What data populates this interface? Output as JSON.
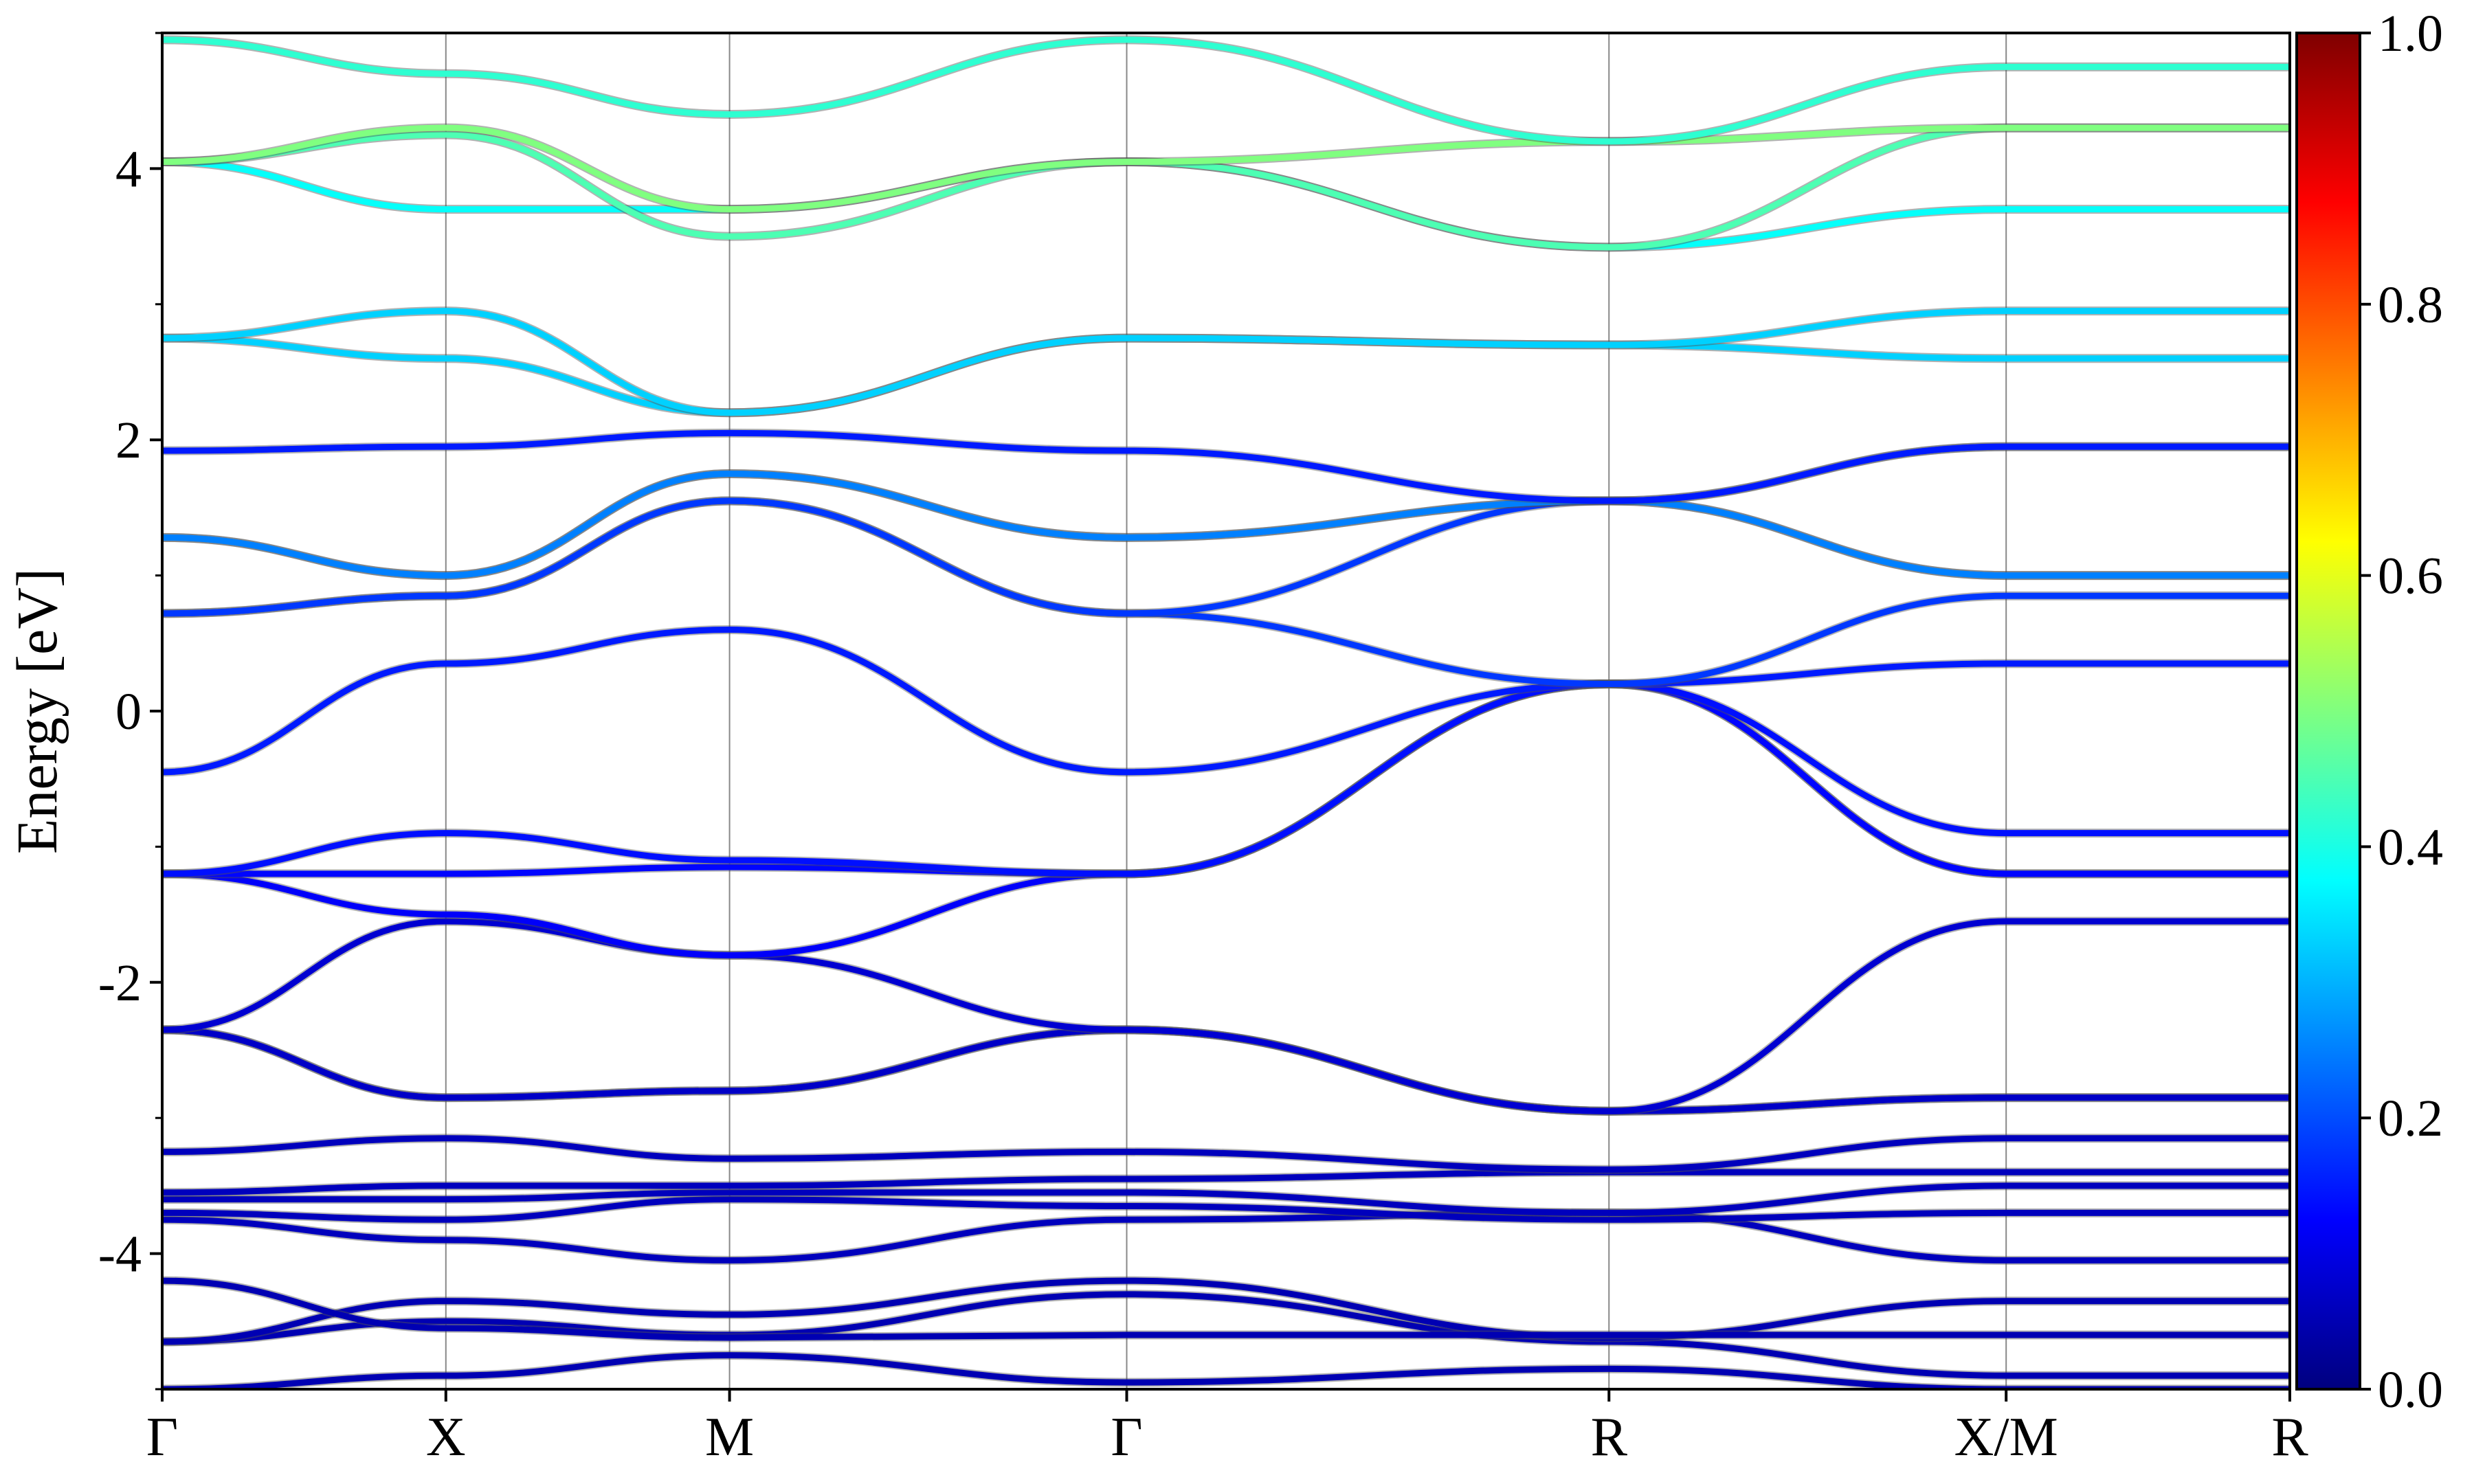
{
  "chart_data": {
    "type": "line",
    "ylabel": "Energy [eV]",
    "ylim": [
      -5,
      5
    ],
    "xlim": [
      0,
      7.5
    ],
    "y_ticks": [
      4,
      2,
      0,
      -2,
      -4
    ],
    "y_tick_labels": [
      "4",
      "2",
      "0",
      "-2",
      "-4"
    ],
    "y_minor_ticks": [
      -5,
      -3,
      -1,
      1,
      3,
      5
    ],
    "grid": "vertical lines at high-symmetry points",
    "kpoints": [
      {
        "label": "Γ",
        "x": 0
      },
      {
        "label": "X",
        "x": 1
      },
      {
        "label": "M",
        "x": 2
      },
      {
        "label": "Γ",
        "x": 3.4
      },
      {
        "label": "R",
        "x": 5.1
      },
      {
        "label": "X/M",
        "x": 6.5
      },
      {
        "label": "R",
        "x": 7.5
      }
    ],
    "colorbar": {
      "min": 0,
      "max": 1,
      "ticks": [
        0,
        0.2,
        0.4,
        0.6,
        0.8,
        1
      ],
      "tick_labels": [
        "0.0",
        "0.2",
        "0.4",
        "0.6",
        "0.8",
        "1.0"
      ],
      "colormap": "jet",
      "placement": "right"
    },
    "series": [
      {
        "x": [
          0,
          1,
          2,
          3.4,
          5.1,
          6.5
        ],
        "y": [
          -5.0,
          -4.9,
          -4.75,
          -4.95,
          -4.85,
          -5.0
        ],
        "c": 0.05
      },
      {
        "x": [
          0,
          1,
          2,
          3.4,
          5.1,
          6.5
        ],
        "y": [
          -4.65,
          -4.5,
          -4.6,
          -4.3,
          -4.65,
          -4.9
        ],
        "c": 0.05
      },
      {
        "x": [
          0,
          1,
          2,
          3.4,
          5.1,
          6.5
        ],
        "y": [
          -4.65,
          -4.35,
          -4.45,
          -4.2,
          -4.62,
          -4.35
        ],
        "c": 0.05
      },
      {
        "x": [
          0,
          1,
          2,
          3.4,
          5.1,
          6.5
        ],
        "y": [
          -4.2,
          -4.55,
          -4.62,
          -4.6,
          -4.6,
          -4.6
        ],
        "c": 0.05
      },
      {
        "x": [
          0,
          1,
          2,
          3.4,
          5.1,
          6.5
        ],
        "y": [
          -3.75,
          -3.9,
          -4.05,
          -3.75,
          -3.7,
          -4.05
        ],
        "c": 0.06
      },
      {
        "x": [
          0,
          1,
          2,
          3.4,
          5.1,
          6.5
        ],
        "y": [
          -3.7,
          -3.75,
          -3.6,
          -3.65,
          -3.75,
          -3.7
        ],
        "c": 0.06
      },
      {
        "x": [
          0,
          1,
          2,
          3.4,
          5.1,
          6.5
        ],
        "y": [
          -3.6,
          -3.6,
          -3.55,
          -3.55,
          -3.7,
          -3.5
        ],
        "c": 0.06
      },
      {
        "x": [
          0,
          1,
          2,
          3.4,
          5.1,
          6.5
        ],
        "y": [
          -3.55,
          -3.5,
          -3.5,
          -3.45,
          -3.4,
          -3.4
        ],
        "c": 0.06
      },
      {
        "x": [
          0,
          1,
          2,
          3.4,
          5.1,
          6.5
        ],
        "y": [
          -3.25,
          -3.15,
          -3.3,
          -3.25,
          -3.38,
          -3.15
        ],
        "c": 0.06
      },
      {
        "x": [
          0,
          1,
          2,
          3.4,
          5.1,
          6.5
        ],
        "y": [
          -2.35,
          -2.85,
          -2.8,
          -2.35,
          -2.95,
          -2.85
        ],
        "c": 0.07
      },
      {
        "x": [
          0,
          1,
          2,
          3.4,
          5.1,
          6.5
        ],
        "y": [
          -2.35,
          -2.85,
          -2.8,
          -2.35,
          -2.95,
          -2.85
        ],
        "c": 0.07
      },
      {
        "x": [
          0,
          1,
          2,
          3.4,
          5.1,
          6.5
        ],
        "y": [
          -2.35,
          -1.55,
          -1.8,
          -2.35,
          -2.95,
          -1.55
        ],
        "c": 0.08
      },
      {
        "x": [
          0,
          1,
          2,
          3.4,
          5.1,
          6.5
        ],
        "y": [
          -1.2,
          -1.5,
          -1.8,
          -1.2,
          0.2,
          -1.2
        ],
        "c": 0.12
      },
      {
        "x": [
          0,
          1,
          2,
          3.4,
          5.1,
          6.5
        ],
        "y": [
          -1.2,
          -1.2,
          -1.15,
          -1.2,
          0.2,
          -1.2
        ],
        "c": 0.13
      },
      {
        "x": [
          0,
          1,
          2,
          3.4,
          5.1,
          6.5
        ],
        "y": [
          -1.2,
          -0.9,
          -1.1,
          -1.2,
          0.2,
          -0.9
        ],
        "c": 0.14
      },
      {
        "x": [
          0,
          1,
          2,
          3.4,
          5.1,
          6.5
        ],
        "y": [
          -0.45,
          0.35,
          0.6,
          -0.45,
          0.2,
          0.35
        ],
        "c": 0.15
      },
      {
        "x": [
          0,
          1,
          2,
          3.4,
          5.1,
          6.5
        ],
        "y": [
          0.72,
          0.85,
          1.55,
          0.72,
          0.2,
          0.85
        ],
        "c": 0.18
      },
      {
        "x": [
          0,
          1,
          2,
          3.4,
          5.1,
          6.5
        ],
        "y": [
          0.72,
          0.85,
          1.55,
          0.72,
          1.55,
          1.95
        ],
        "c": 0.18
      },
      {
        "x": [
          0,
          1,
          2,
          3.4,
          5.1,
          6.5
        ],
        "y": [
          1.28,
          1.0,
          1.75,
          1.28,
          1.55,
          1.0
        ],
        "c": 0.25
      },
      {
        "x": [
          0,
          1,
          2,
          3.4,
          5.1,
          6.5
        ],
        "y": [
          1.28,
          1.0,
          1.75,
          1.28,
          1.55,
          1.0
        ],
        "c": 0.25
      },
      {
        "x": [
          0,
          1,
          2,
          3.4,
          5.1,
          6.5
        ],
        "y": [
          1.92,
          1.95,
          2.05,
          1.92,
          1.55,
          1.95
        ],
        "c": 0.15
      },
      {
        "x": [
          0,
          1,
          2,
          3.4,
          5.1,
          6.5
        ],
        "y": [
          2.75,
          2.6,
          2.2,
          2.75,
          2.7,
          2.6
        ],
        "c": 0.33
      },
      {
        "x": [
          0,
          1,
          2,
          3.4,
          5.1,
          6.5
        ],
        "y": [
          2.75,
          2.95,
          2.2,
          2.75,
          2.7,
          2.95
        ],
        "c": 0.33
      },
      {
        "x": [
          0,
          1,
          2,
          3.4,
          5.1,
          6.5
        ],
        "y": [
          4.05,
          3.7,
          3.7,
          4.05,
          3.42,
          3.7
        ],
        "c": 0.38
      },
      {
        "x": [
          0,
          1,
          2,
          3.4,
          5.1,
          6.5
        ],
        "y": [
          4.05,
          4.25,
          3.5,
          4.05,
          3.42,
          4.3
        ],
        "c": 0.45
      },
      {
        "x": [
          0,
          1,
          2,
          3.4,
          5.1,
          6.5
        ],
        "y": [
          4.05,
          4.3,
          3.7,
          4.05,
          4.2,
          4.3
        ],
        "c": 0.5
      },
      {
        "x": [
          0,
          1,
          2,
          3.4,
          5.1,
          6.5
        ],
        "y": [
          4.95,
          4.7,
          4.4,
          4.95,
          4.2,
          4.75
        ],
        "c": 0.42
      }
    ]
  }
}
